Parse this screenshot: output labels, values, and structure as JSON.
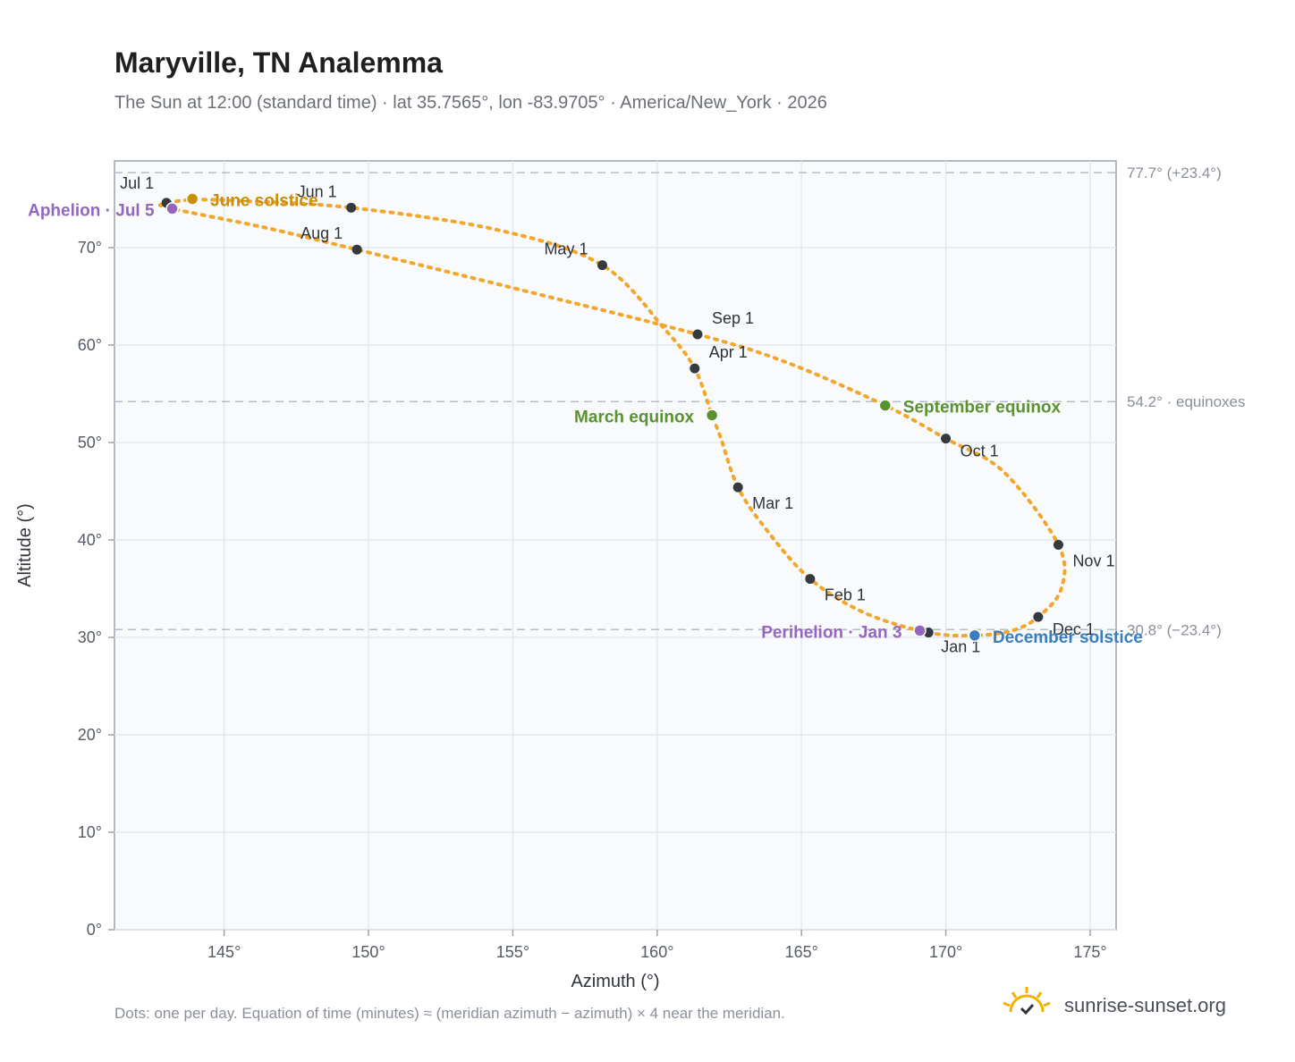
{
  "header": {
    "title": "Maryville, TN Analemma",
    "subtitle": "The Sun at 12:00 (standard time) · lat 35.7565°, lon -83.9705° · America/New_York · 2026"
  },
  "footer": {
    "note": "Dots: one per day. Equation of time (minutes) ≈ (meridian azimuth − azimuth) × 4 near the meridian.",
    "brand": "sunrise-sunset.org"
  },
  "colors": {
    "curve": "#f2a62b",
    "month_marker": "#343a40",
    "solstice_june": "#c8900a",
    "solstice_december": "#3a7dbf",
    "equinox": "#5a9231",
    "apsis": "#9467bd",
    "reference_line": "#b4bec8",
    "plot_bg": "#f8fafc",
    "grid": "#e4e8ee",
    "axis": "#9aa3ae"
  },
  "chart_data": {
    "type": "scatter",
    "title": "Maryville, TN Analemma",
    "xlabel": "Azimuth (°)",
    "ylabel": "Altitude (°)",
    "xlim": [
      141.2,
      175.9
    ],
    "ylim": [
      0,
      78.9
    ],
    "x_ticks": [
      145,
      150,
      155,
      160,
      165,
      170,
      175
    ],
    "x_tick_labels": [
      "145°",
      "150°",
      "155°",
      "160°",
      "165°",
      "170°",
      "175°"
    ],
    "y_ticks": [
      0,
      10,
      20,
      30,
      40,
      50,
      60,
      70
    ],
    "y_tick_labels": [
      "0°",
      "10°",
      "20°",
      "30°",
      "40°",
      "50°",
      "60°",
      "70°"
    ],
    "grid": true,
    "analemma_path": [
      [
        171.0,
        30.2
      ],
      [
        169.4,
        30.5
      ],
      [
        167.2,
        32.5
      ],
      [
        165.3,
        36.0
      ],
      [
        163.8,
        41.0
      ],
      [
        162.8,
        45.4
      ],
      [
        162.2,
        50.5
      ],
      [
        161.9,
        52.8
      ],
      [
        161.3,
        57.6
      ],
      [
        160.3,
        61.5
      ],
      [
        158.1,
        68.2
      ],
      [
        154.5,
        71.8
      ],
      [
        149.4,
        74.1
      ],
      [
        145.5,
        74.8
      ],
      [
        143.9,
        74.9
      ],
      [
        142.9,
        74.5
      ],
      [
        143.2,
        74.0
      ],
      [
        146.5,
        72.0
      ],
      [
        149.6,
        69.8
      ],
      [
        155.5,
        65.5
      ],
      [
        161.4,
        61.1
      ],
      [
        164.5,
        58.2
      ],
      [
        167.9,
        53.8
      ],
      [
        170.0,
        50.4
      ],
      [
        172.0,
        47.0
      ],
      [
        173.9,
        39.5
      ],
      [
        174.0,
        35.0
      ],
      [
        173.2,
        32.1
      ],
      [
        172.3,
        30.7
      ],
      [
        171.0,
        30.2
      ]
    ],
    "month_markers": [
      {
        "label": "Jan 1",
        "x": 169.4,
        "y": 30.5
      },
      {
        "label": "Feb 1",
        "x": 165.3,
        "y": 36.0
      },
      {
        "label": "Mar 1",
        "x": 162.8,
        "y": 45.4
      },
      {
        "label": "Apr 1",
        "x": 161.3,
        "y": 57.6
      },
      {
        "label": "May 1",
        "x": 158.1,
        "y": 68.2
      },
      {
        "label": "Jun 1",
        "x": 149.4,
        "y": 74.1
      },
      {
        "label": "Jul 1",
        "x": 143.0,
        "y": 74.6
      },
      {
        "label": "Aug 1",
        "x": 149.6,
        "y": 69.8
      },
      {
        "label": "Sep 1",
        "x": 161.4,
        "y": 61.1
      },
      {
        "label": "Oct 1",
        "x": 170.0,
        "y": 50.4
      },
      {
        "label": "Nov 1",
        "x": 173.9,
        "y": 39.5
      },
      {
        "label": "Dec 1",
        "x": 173.2,
        "y": 32.1
      }
    ],
    "events": [
      {
        "label": "June solstice",
        "x": 143.9,
        "y": 75.0,
        "kind": "solstice_june"
      },
      {
        "label": "Aphelion · Jul 5",
        "x": 143.2,
        "y": 74.0,
        "kind": "apsis"
      },
      {
        "label": "March equinox",
        "x": 161.9,
        "y": 52.8,
        "kind": "equinox"
      },
      {
        "label": "September equinox",
        "x": 167.9,
        "y": 53.8,
        "kind": "equinox"
      },
      {
        "label": "Perihelion · Jan 3",
        "x": 169.1,
        "y": 30.7,
        "kind": "apsis"
      },
      {
        "label": "December solstice",
        "x": 171.0,
        "y": 30.2,
        "kind": "solstice_december"
      }
    ],
    "reference_lines": [
      {
        "y": 77.7,
        "label": "77.7° (+23.4°)"
      },
      {
        "y": 54.2,
        "label": "54.2° · equinoxes"
      },
      {
        "y": 30.8,
        "label": "30.8° (−23.4°)"
      }
    ]
  }
}
